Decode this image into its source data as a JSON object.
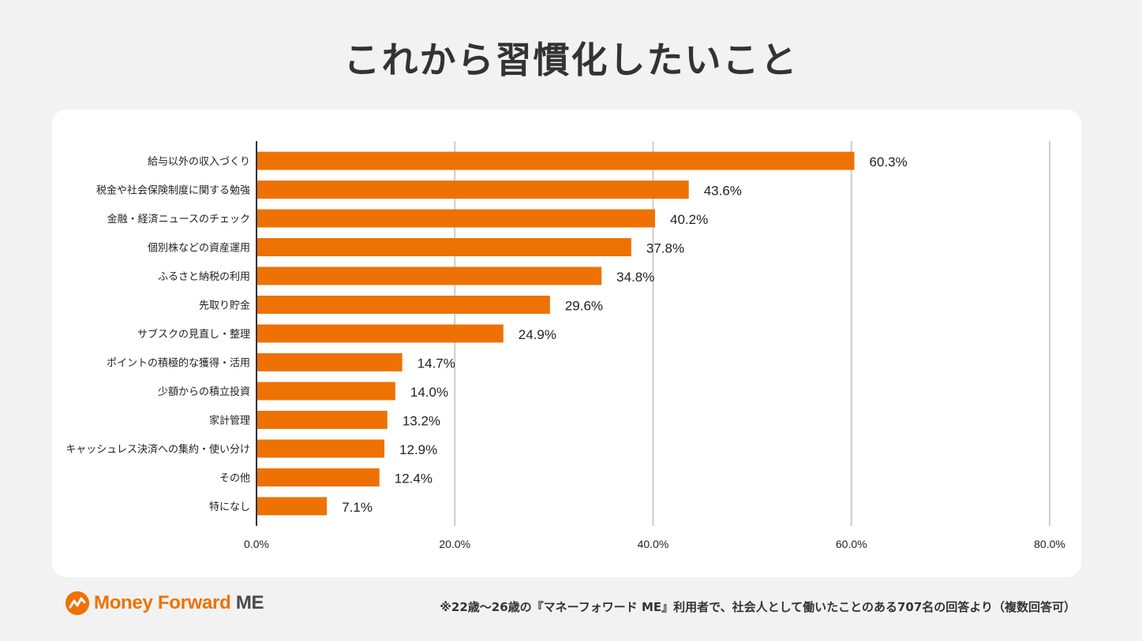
{
  "title": "これから習慣化したいこと",
  "logo": {
    "brand": "Money Forward",
    "suffix": "ME"
  },
  "footnote": "※22歳〜26歳の『マネーフォワード ME』利用者で、社会人として働いたことのある707名の回答より（複数回答可）",
  "colors": {
    "bar": "#ee7203",
    "grid": "#cccccc",
    "axis": "#333333"
  },
  "chart_data": {
    "type": "bar",
    "orientation": "horizontal",
    "categories": [
      "給与以外の収入づくり",
      "税金や社会保険制度に関する勉強",
      "金融・経済ニュースのチェック",
      "個別株などの資産運用",
      "ふるさと納税の利用",
      "先取り貯金",
      "サブスクの見直し・整理",
      "ポイントの積極的な獲得・活用",
      "少額からの積立投資",
      "家計管理",
      "キャッシュレス決済への集約・使い分け",
      "その他",
      "特になし"
    ],
    "values": [
      60.3,
      43.6,
      40.2,
      37.8,
      34.8,
      29.6,
      24.9,
      14.7,
      14.0,
      13.2,
      12.9,
      12.4,
      7.1
    ],
    "value_labels": [
      "60.3%",
      "43.6%",
      "40.2%",
      "37.8%",
      "34.8%",
      "29.6%",
      "24.9%",
      "14.7%",
      "14.0%",
      "13.2%",
      "12.9%",
      "12.4%",
      "7.1%"
    ],
    "xlim": [
      0,
      80
    ],
    "ticks": [
      0,
      20,
      40,
      60,
      80
    ],
    "tick_labels": [
      "0.0%",
      "20.0%",
      "40.0%",
      "60.0%",
      "80.0%"
    ],
    "grid": true
  }
}
